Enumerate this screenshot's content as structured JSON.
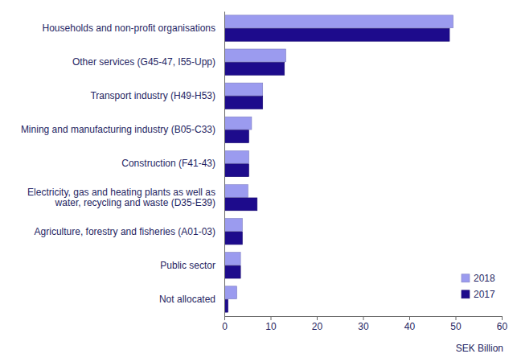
{
  "chart_data": {
    "type": "bar",
    "orientation": "horizontal",
    "categories": [
      "Households and non-profit organisations",
      "Other services (G45-47, I55-Upp)",
      "Transport industry (H49-H53)",
      "Mining and manufacturing industry (B05-C33)",
      "Construction (F41-43)",
      "Electricity, gas and heating plants as well as water, recycling and waste (D35-E39)",
      "Agriculture, forestry and fisheries (A01-03)",
      "Public sector",
      "Not allocated"
    ],
    "series": [
      {
        "name": "2018",
        "color": "#9b9bef",
        "values": [
          49.5,
          13.3,
          8.3,
          5.9,
          5.3,
          5.1,
          3.9,
          3.5,
          2.7
        ]
      },
      {
        "name": "2017",
        "color": "#1d0b8c",
        "values": [
          48.7,
          13.0,
          8.3,
          5.3,
          5.3,
          7.1,
          3.9,
          3.5,
          0.8
        ]
      }
    ],
    "x_label": "SEK Billion",
    "xlim": [
      0,
      60
    ],
    "xticks": [
      0,
      10,
      20,
      30,
      40,
      50,
      60
    ],
    "legend": "lower right",
    "grid": false
  }
}
